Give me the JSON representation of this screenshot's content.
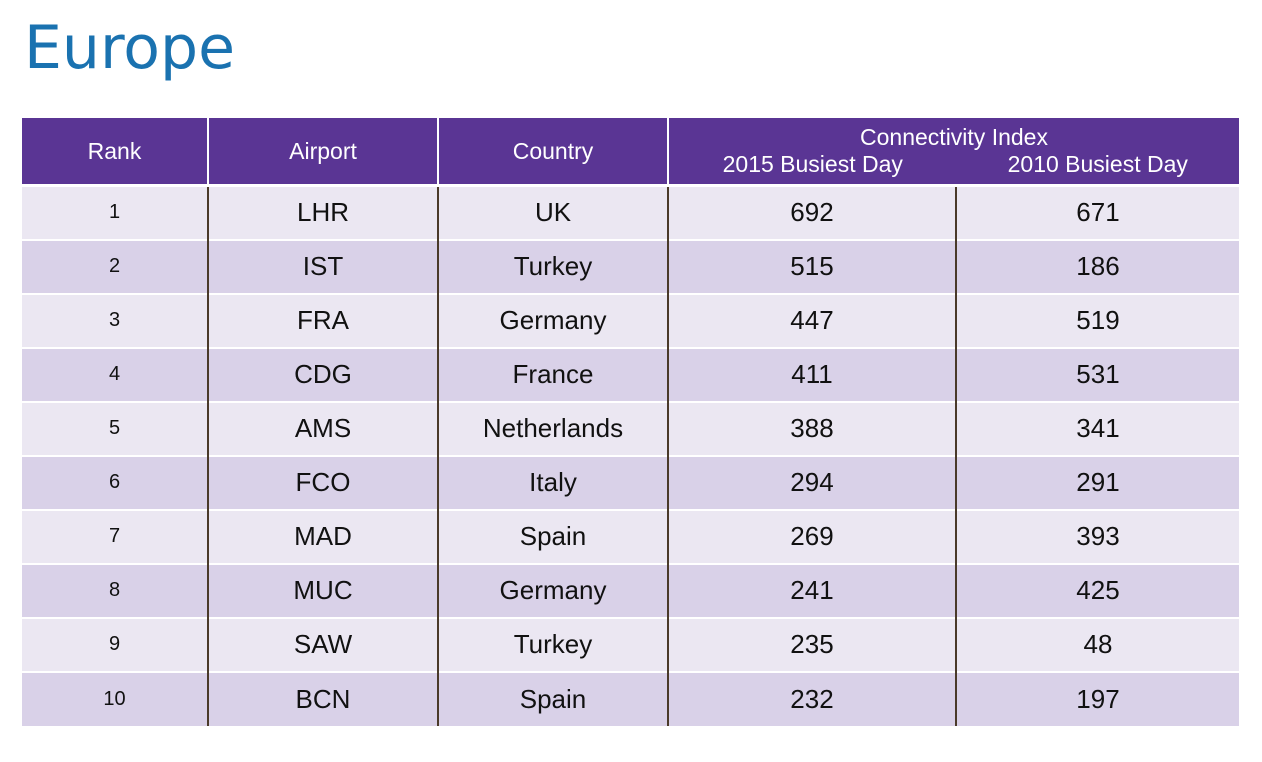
{
  "title": "Europe",
  "table": {
    "headers": {
      "rank": "Rank",
      "airport": "Airport",
      "country": "Country",
      "group": "Connectivity Index",
      "col_2015": "2015 Busiest Day",
      "col_2010": "2010 Busiest Day"
    },
    "rows": [
      {
        "rank": "1",
        "airport": "LHR",
        "country": "UK",
        "v2015": "692",
        "v2010": "671"
      },
      {
        "rank": "2",
        "airport": "IST",
        "country": "Turkey",
        "v2015": "515",
        "v2010": "186"
      },
      {
        "rank": "3",
        "airport": "FRA",
        "country": "Germany",
        "v2015": "447",
        "v2010": "519"
      },
      {
        "rank": "4",
        "airport": "CDG",
        "country": "France",
        "v2015": "411",
        "v2010": "531"
      },
      {
        "rank": "5",
        "airport": "AMS",
        "country": "Netherlands",
        "v2015": "388",
        "v2010": "341"
      },
      {
        "rank": "6",
        "airport": "FCO",
        "country": "Italy",
        "v2015": "294",
        "v2010": "291"
      },
      {
        "rank": "7",
        "airport": "MAD",
        "country": "Spain",
        "v2015": "269",
        "v2010": "393"
      },
      {
        "rank": "8",
        "airport": "MUC",
        "country": "Germany",
        "v2015": "241",
        "v2010": "425"
      },
      {
        "rank": "9",
        "airport": "SAW",
        "country": "Turkey",
        "v2015": "235",
        "v2010": "48"
      },
      {
        "rank": "10",
        "airport": "BCN",
        "country": "Spain",
        "v2015": "232",
        "v2010": "197"
      }
    ]
  },
  "colors": {
    "title": "#1a72b0",
    "header_bg": "#5a3594",
    "row_light": "#ebe7f2",
    "row_dark": "#d9d1e8"
  }
}
